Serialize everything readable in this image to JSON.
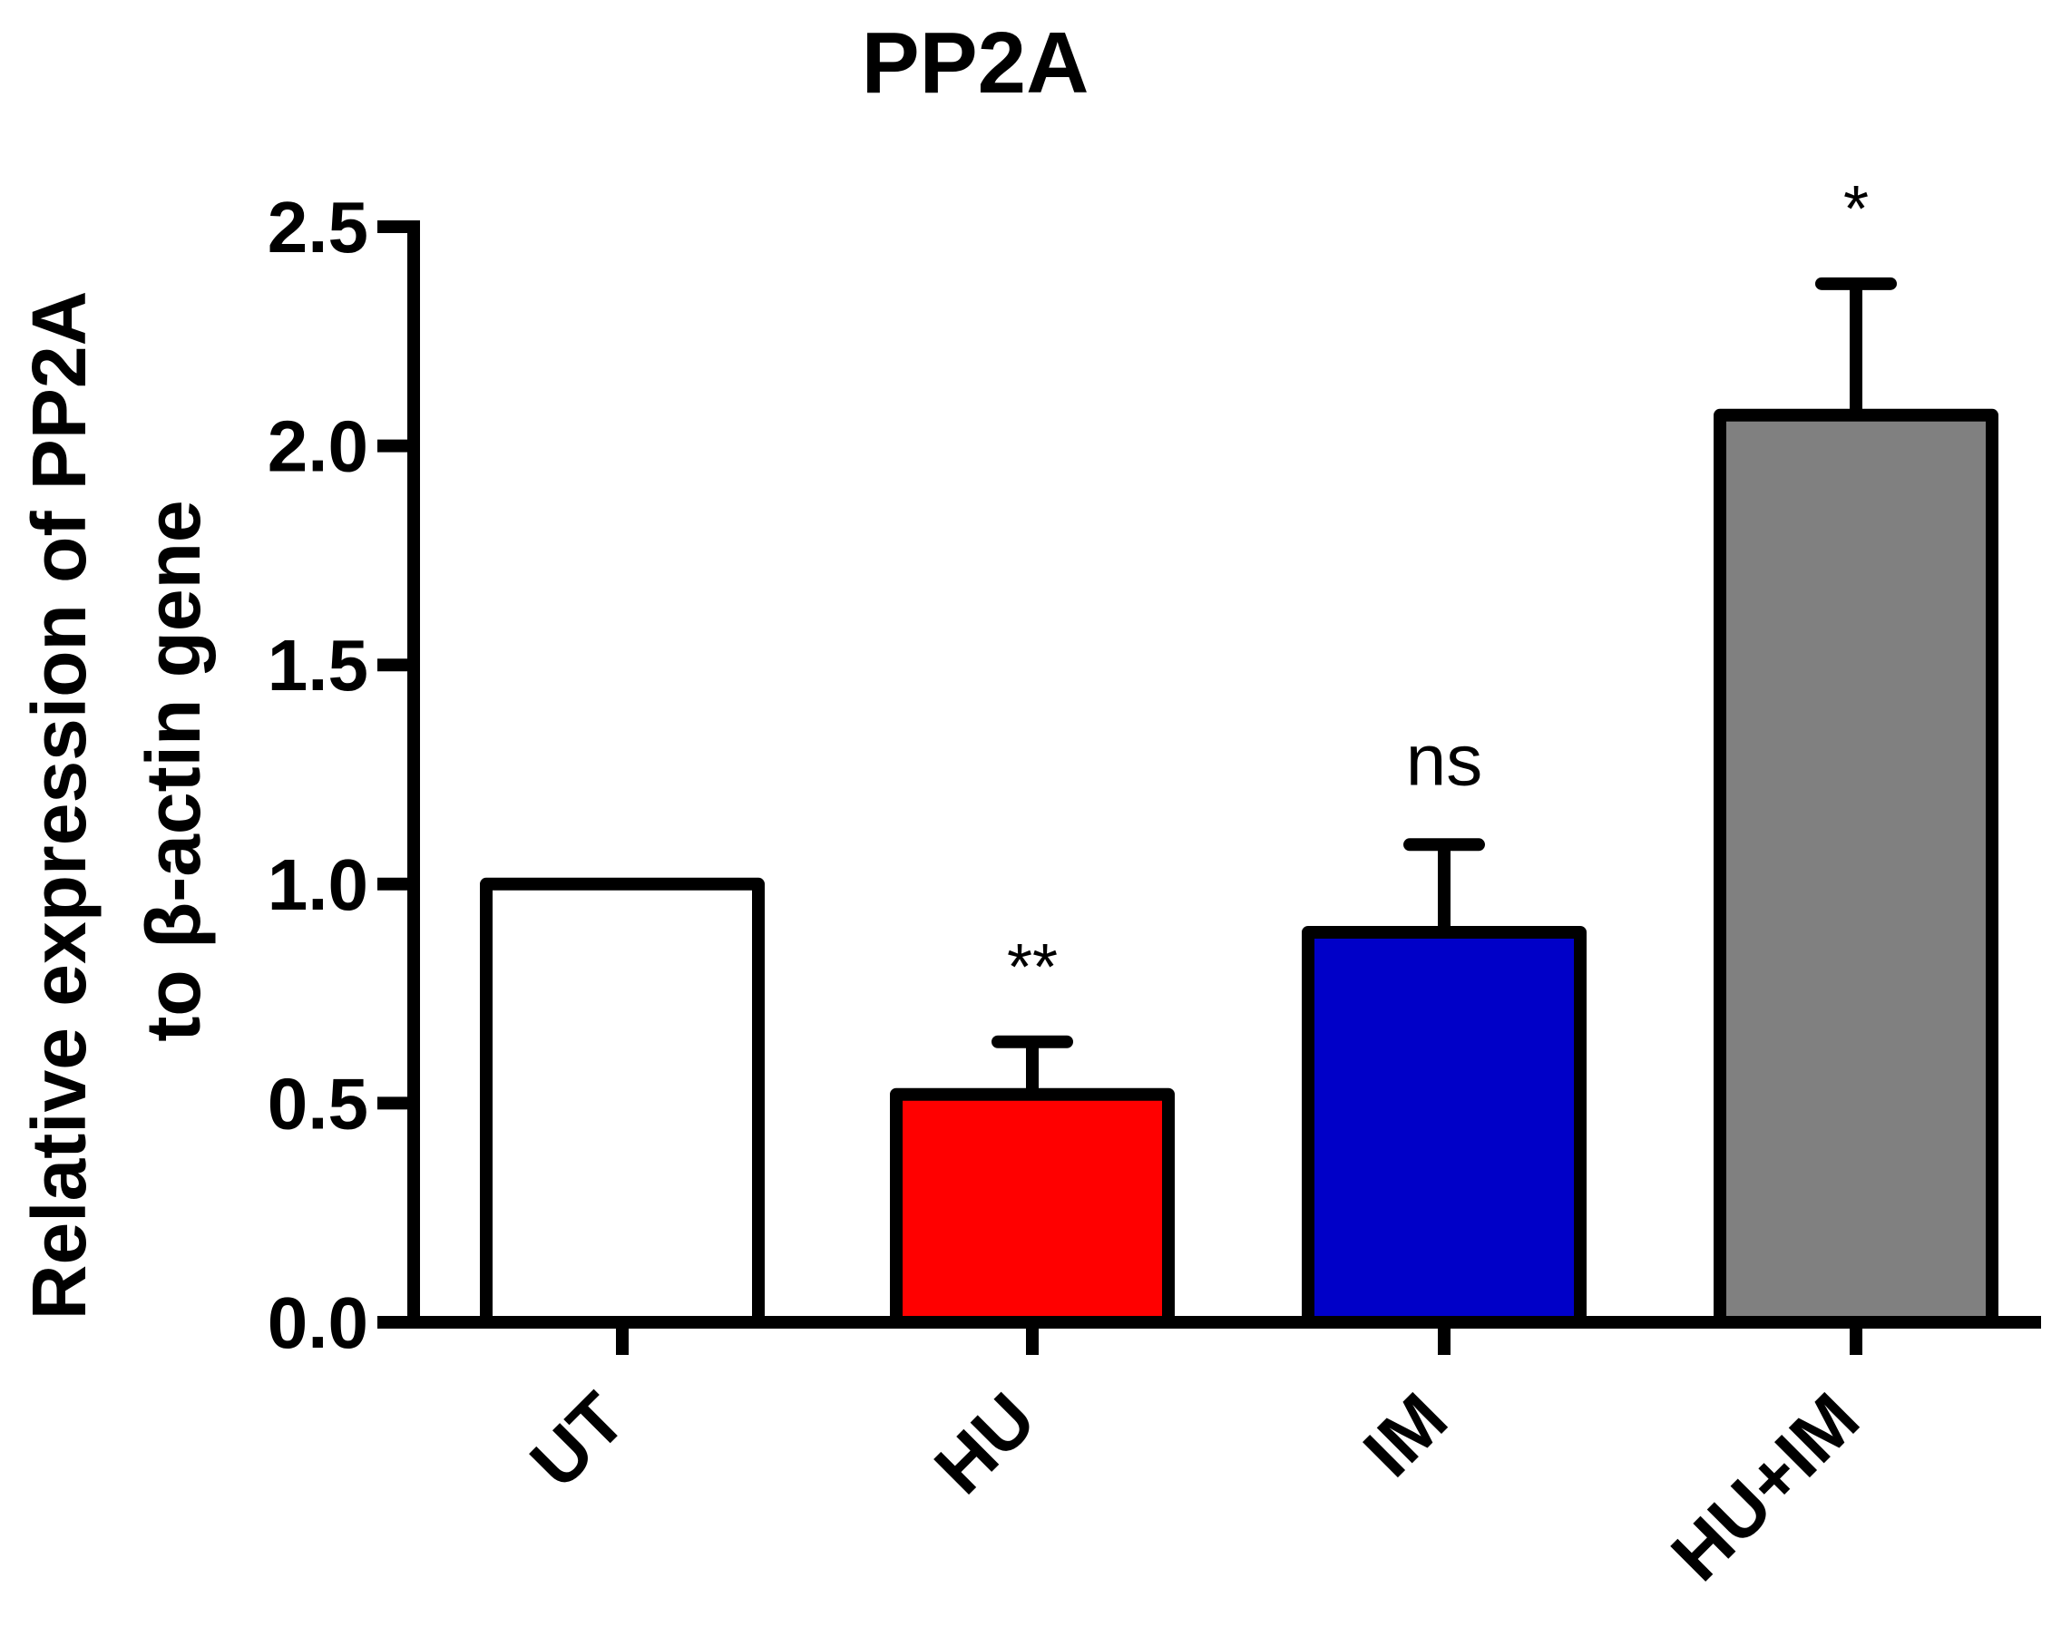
{
  "chart_data": {
    "type": "bar",
    "title": "PP2A",
    "ylabel_line1": "Relative expression of PP2A",
    "ylabel_line2": "to β-actin gene",
    "xlabel": "",
    "categories": [
      "UT",
      "HU",
      "IM",
      "HU+IM"
    ],
    "values": [
      1.0,
      0.52,
      0.89,
      2.07
    ],
    "error_upper": [
      0.0,
      0.12,
      0.2,
      0.3
    ],
    "annotations": [
      "",
      "**",
      "ns",
      "*"
    ],
    "colors": [
      "#ffffff",
      "#ff0000",
      "#0000c8",
      "#808080"
    ],
    "ylim": [
      0,
      2.5
    ],
    "yticks": [
      "0.0",
      "0.5",
      "1.0",
      "1.5",
      "2.0",
      "2.5"
    ],
    "grid": false,
    "legend": "none"
  }
}
